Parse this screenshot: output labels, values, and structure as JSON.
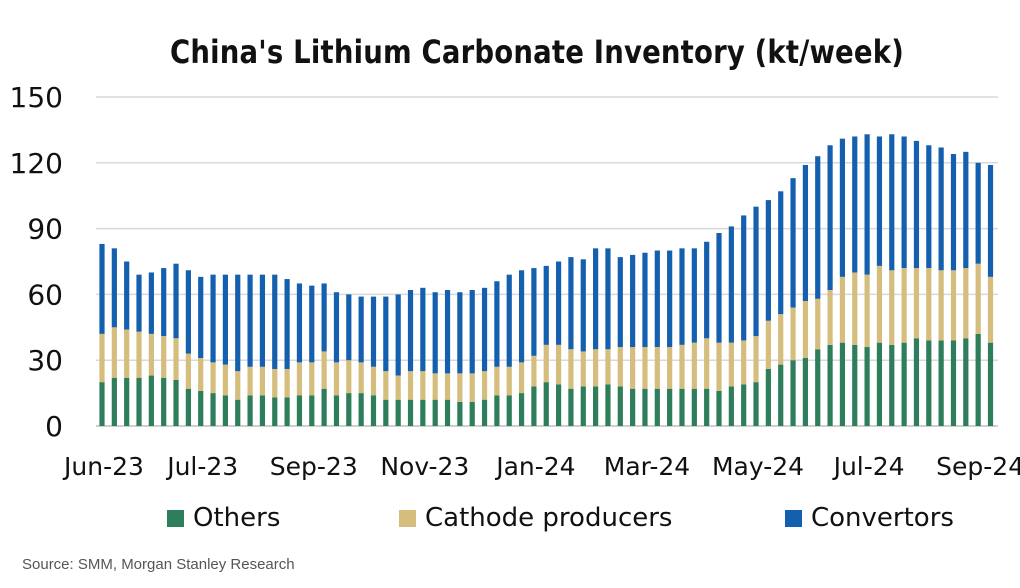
{
  "chart_data": {
    "type": "bar",
    "stacked": true,
    "title": "China's Lithium Carbonate Inventory (kt/week)",
    "ylim": [
      0,
      150
    ],
    "yticks": [
      0,
      30,
      60,
      90,
      120,
      150
    ],
    "grid": true,
    "legend_position": "bottom",
    "xtick_labels": [
      {
        "label": "Jun-23",
        "index": 0
      },
      {
        "label": "Jul-23",
        "index": 8
      },
      {
        "label": "Sep-23",
        "index": 17
      },
      {
        "label": "Nov-23",
        "index": 26
      },
      {
        "label": "Jan-24",
        "index": 35
      },
      {
        "label": "Mar-24",
        "index": 44
      },
      {
        "label": "May-24",
        "index": 53
      },
      {
        "label": "Jul-24",
        "index": 62
      },
      {
        "label": "Sep-24",
        "index": 71
      }
    ],
    "series": [
      {
        "name": "Others",
        "color": "#2e7d5b",
        "values": [
          20,
          22,
          22,
          22,
          23,
          22,
          21,
          17,
          16,
          15,
          14,
          12,
          14,
          14,
          13,
          13,
          14,
          14,
          17,
          14,
          15,
          15,
          14,
          12,
          12,
          12,
          12,
          12,
          12,
          11,
          11,
          12,
          14,
          14,
          15,
          18,
          20,
          19,
          17,
          18,
          18,
          19,
          18,
          17,
          17,
          17,
          17,
          17,
          17,
          17,
          16,
          18,
          19,
          20,
          26,
          28,
          30,
          31,
          35,
          37,
          38,
          37,
          36,
          38,
          37,
          38,
          40,
          39,
          39,
          39,
          40,
          42,
          38
        ]
      },
      {
        "name": "Cathode producers",
        "color": "#d4bd7d",
        "values": [
          22,
          23,
          22,
          21,
          19,
          19,
          19,
          16,
          15,
          14,
          14,
          13,
          13,
          13,
          13,
          13,
          15,
          15,
          17,
          15,
          15,
          14,
          13,
          13,
          11,
          13,
          13,
          12,
          12,
          13,
          13,
          13,
          13,
          13,
          14,
          14,
          17,
          18,
          18,
          16,
          17,
          16,
          18,
          19,
          19,
          19,
          19,
          20,
          21,
          23,
          22,
          20,
          20,
          21,
          22,
          23,
          24,
          26,
          23,
          25,
          30,
          33,
          33,
          35,
          34,
          34,
          32,
          33,
          32,
          32,
          32,
          32,
          30
        ]
      },
      {
        "name": "Convertors",
        "color": "#1560ae",
        "values": [
          41,
          36,
          31,
          26,
          28,
          31,
          34,
          38,
          37,
          40,
          41,
          44,
          42,
          42,
          43,
          41,
          36,
          35,
          31,
          32,
          30,
          30,
          32,
          34,
          37,
          37,
          38,
          37,
          38,
          37,
          38,
          38,
          39,
          42,
          42,
          40,
          36,
          38,
          42,
          42,
          46,
          46,
          41,
          42,
          43,
          44,
          44,
          44,
          43,
          44,
          50,
          53,
          57,
          59,
          55,
          56,
          59,
          62,
          65,
          66,
          63,
          62,
          64,
          59,
          62,
          60,
          58,
          56,
          56,
          53,
          53,
          46,
          51
        ]
      }
    ]
  },
  "legend": {
    "items": [
      {
        "label": "Others",
        "color": "#2e7d5b"
      },
      {
        "label": "Cathode producers",
        "color": "#d4bd7d"
      },
      {
        "label": "Convertors",
        "color": "#1560ae"
      }
    ]
  },
  "source": "Source: SMM, Morgan Stanley Research"
}
